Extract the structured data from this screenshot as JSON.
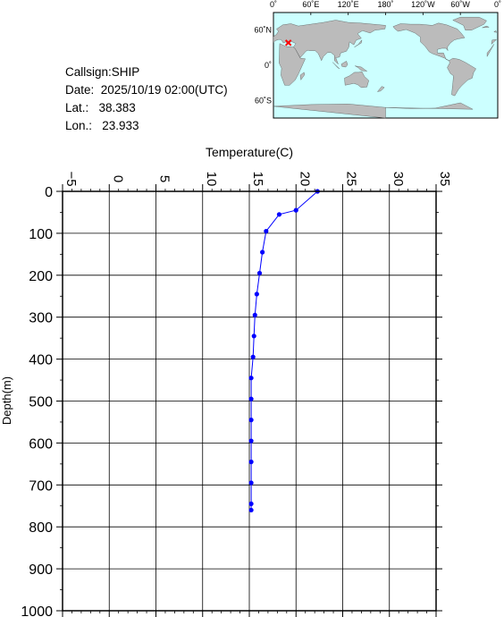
{
  "info": {
    "callsign": "Callsign:SHIP",
    "date": "Date:  2025/10/19 02:00(UTC)",
    "lat": "Lat.:   38.383",
    "lon": "Lon.:   23.933"
  },
  "map": {
    "lon_labels": [
      "0˚",
      "60˚E",
      "120˚E",
      "180˚",
      "120˚W",
      "60˚W",
      "0˚"
    ],
    "lat_labels": [
      "60˚N",
      "0˚",
      "60˚S"
    ],
    "ocean_color": "#ccffff",
    "land_color": "#bbbbbb",
    "marker_color": "#ff0000",
    "marker_lon": 23.933,
    "marker_lat": 38.383
  },
  "chart_data": {
    "type": "line",
    "xlabel": "Temperature(C)",
    "ylabel": "Depth(m)",
    "xlim": [
      -5,
      35
    ],
    "ylim": [
      0,
      1000
    ],
    "y_inverted": true,
    "x_axis_position": "top",
    "grid": true,
    "x_ticks": [
      "-5",
      "0",
      "5",
      "10",
      "15",
      "20",
      "25",
      "30",
      "35"
    ],
    "y_ticks": [
      "0",
      "100",
      "200",
      "300",
      "400",
      "500",
      "600",
      "700",
      "800",
      "900",
      "1000"
    ],
    "line_color": "#0000ff",
    "series": [
      {
        "x": [
          22.3,
          20.0,
          18.2,
          16.8,
          16.4,
          16.1,
          15.8,
          15.6,
          15.5,
          15.4,
          15.2,
          15.2,
          15.2,
          15.2,
          15.2,
          15.2,
          15.2,
          15.2
        ],
        "y": [
          0,
          45,
          55,
          95,
          145,
          195,
          245,
          295,
          345,
          395,
          445,
          495,
          545,
          595,
          645,
          695,
          745,
          760
        ]
      }
    ]
  }
}
